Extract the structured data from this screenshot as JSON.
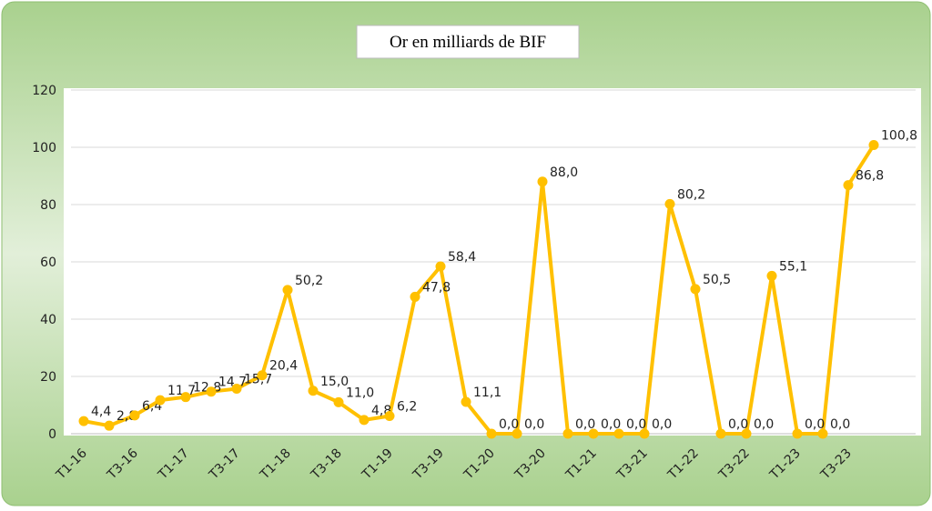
{
  "chart_data": {
    "type": "line",
    "title": "Or en milliards de BIF",
    "categories": [
      "T1-16",
      null,
      "T3-16",
      null,
      "T1-17",
      null,
      "T3-17",
      null,
      "T1-18",
      null,
      "T3-18",
      null,
      "T1-19",
      null,
      "T3-19",
      null,
      "T1-20",
      null,
      "T3-20",
      null,
      "T1-21",
      null,
      "T3-21",
      null,
      "T1-22",
      null,
      "T3-22",
      null,
      "T1-23",
      null,
      "T3-23",
      null
    ],
    "values": [
      4.4,
      2.8,
      6.4,
      11.7,
      12.8,
      14.7,
      15.7,
      20.4,
      50.2,
      15.0,
      11.0,
      4.8,
      6.2,
      47.8,
      58.4,
      11.1,
      0.0,
      0.0,
      88.0,
      0.0,
      0.0,
      0.0,
      0.0,
      80.2,
      50.5,
      0.0,
      0.0,
      55.1,
      0.0,
      0.0,
      86.8,
      100.8
    ],
    "value_labels": [
      "4,4",
      "2,8",
      "6,4",
      "11,7",
      "12,8",
      "14,7",
      "15,7",
      "20,4",
      "50,2",
      "15,0",
      "11,0",
      "4,8",
      "6,2",
      "47,8",
      "58,4",
      "11,1",
      "0,0",
      "0,0",
      "88,0",
      "0,0",
      "0,0",
      "0,0",
      "0,0",
      "80,2",
      "50,5",
      "0,0",
      "0,0",
      "55,1",
      "0,0",
      "0,0",
      "86,8",
      "100,8"
    ],
    "color": "#ffc000",
    "ylim": [
      0,
      120
    ],
    "yticks": [
      0,
      20,
      40,
      60,
      80,
      100,
      120
    ],
    "grid": true
  }
}
